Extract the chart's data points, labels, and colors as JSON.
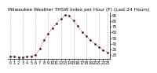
{
  "title": "Milwaukee Weather THSW Index per Hour (F) (Last 24 Hours)",
  "hours": [
    0,
    1,
    2,
    3,
    4,
    5,
    6,
    7,
    8,
    9,
    10,
    11,
    12,
    13,
    14,
    15,
    16,
    17,
    18,
    19,
    20,
    21,
    22,
    23
  ],
  "values": [
    23,
    22,
    21,
    21,
    22,
    23,
    25,
    36,
    51,
    63,
    73,
    81,
    89,
    96,
    94,
    86,
    76,
    66,
    59,
    51,
    45,
    39,
    34,
    30
  ],
  "line_color": "#ff0000",
  "marker_color": "#000000",
  "background_color": "#ffffff",
  "grid_color": "#888888",
  "ylim": [
    18,
    100
  ],
  "yticks": [
    25,
    35,
    45,
    55,
    65,
    75,
    85,
    95
  ],
  "title_fontsize": 4.2,
  "tick_fontsize": 3.5,
  "vgrid_hours": [
    0,
    3,
    6,
    9,
    12,
    15,
    18,
    21,
    23
  ]
}
